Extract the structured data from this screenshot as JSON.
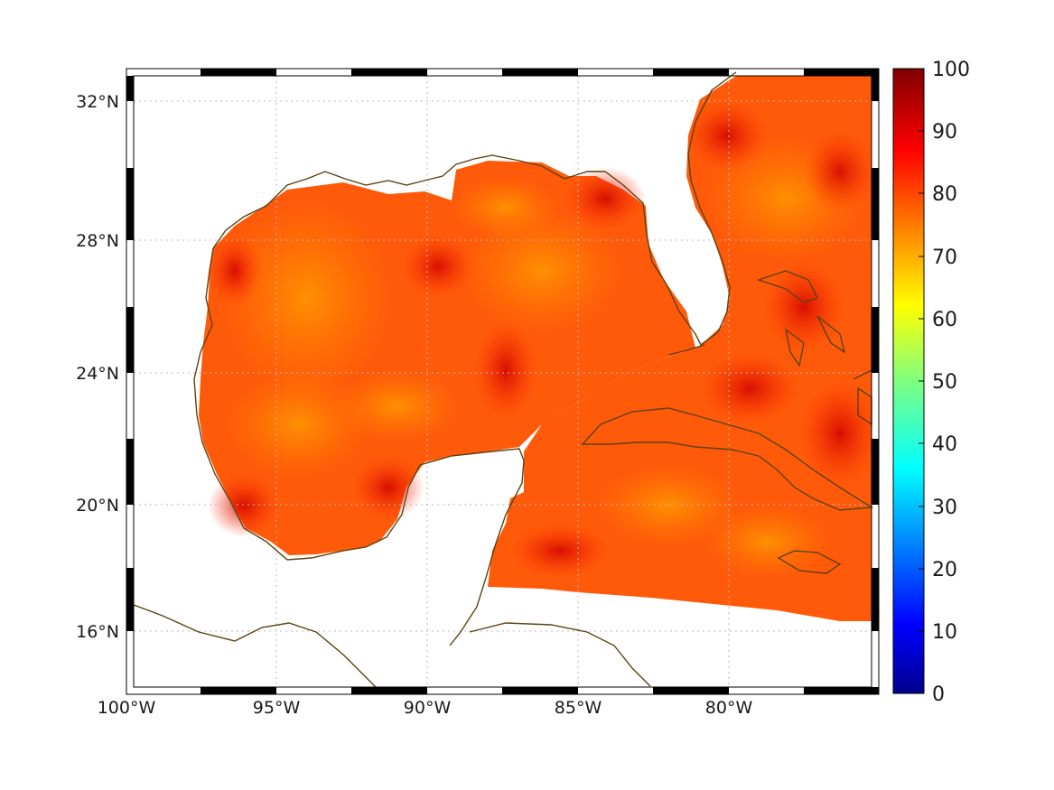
{
  "map": {
    "projection": "equirectangular",
    "lon_range": [
      -100,
      -75
    ],
    "lat_range": [
      14.2,
      33
    ],
    "lon_ticks": [
      {
        "value": -100,
        "label": "100°W"
      },
      {
        "value": -95,
        "label": "95°W"
      },
      {
        "value": -90,
        "label": "90°W"
      },
      {
        "value": -85,
        "label": "85°W"
      },
      {
        "value": -80,
        "label": "80°W"
      }
    ],
    "lat_ticks": [
      {
        "value": 32,
        "label": "32°N"
      },
      {
        "value": 28,
        "label": "28°N"
      },
      {
        "value": 24,
        "label": "24°N"
      },
      {
        "value": 20,
        "label": "20°N"
      },
      {
        "value": 16,
        "label": "16°N"
      }
    ],
    "gridlines": "dotted",
    "coastline_color": "#5c4310",
    "field_range": [
      0,
      100
    ],
    "field_typical_values": [
      72,
      92
    ],
    "colormap": "jet"
  },
  "colorbar": {
    "range": [
      0,
      100
    ],
    "ticks": [
      "0",
      "10",
      "20",
      "30",
      "40",
      "50",
      "60",
      "70",
      "80",
      "90",
      "100"
    ]
  }
}
